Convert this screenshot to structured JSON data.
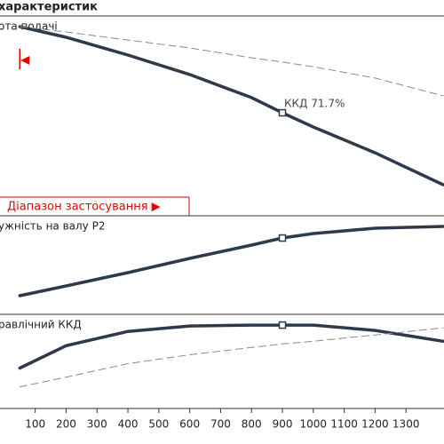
{
  "header": {
    "title": "характеристик"
  },
  "chart_data": [
    {
      "type": "line",
      "title": "ота подачі",
      "xlim": [
        -14,
        1423
      ],
      "ylim": [
        0,
        100
      ],
      "x": [
        50,
        200,
        400,
        600,
        800,
        900,
        1000,
        1200,
        1420
      ],
      "marker_index": 5,
      "range_start": 50,
      "annotations": [
        "ККД  71.7%",
        "Діапазон застосування ▶"
      ],
      "series": [
        {
          "name": null,
          "style": "solid",
          "color": "#2e3a4a",
          "values": [
            94.6,
            89.2,
            80.2,
            70.3,
            58.6,
            50.9,
            43.7,
            30.6,
            14.4
          ]
        },
        {
          "name": null,
          "style": "dashed",
          "color": "#8a8a8a",
          "values": [
            94.6,
            91.9,
            87.8,
            83.8,
            78.8,
            76.6,
            74.3,
            68.5,
            59.5
          ]
        }
      ]
    },
    {
      "type": "line",
      "title": "ужність на валу P2",
      "xlim": [
        -14,
        1423
      ],
      "ylim": [
        0,
        100
      ],
      "x": [
        50,
        200,
        400,
        600,
        800,
        900,
        1000,
        1200,
        1420
      ],
      "marker_index": 5,
      "series": [
        {
          "name": null,
          "style": "solid",
          "color": "#2e3a4a",
          "values": [
            15.9,
            26.2,
            40.2,
            55.1,
            69.2,
            76.6,
            81.3,
            86.9,
            88.8
          ]
        }
      ]
    },
    {
      "type": "line",
      "title": "равлічний ККД",
      "xlim": [
        -14,
        1423
      ],
      "ylim": [
        0,
        100
      ],
      "x": [
        50,
        200,
        400,
        600,
        800,
        900,
        1000,
        1200,
        1420
      ],
      "marker_index": 5,
      "xticks": [
        100,
        200,
        300,
        400,
        500,
        600,
        700,
        800,
        900,
        1000,
        1100,
        1200,
        1300
      ],
      "series": [
        {
          "name": null,
          "style": "solid",
          "color": "#2e3a4a",
          "values": [
            42.9,
            66.7,
            81.9,
            87.6,
            88.6,
            88.6,
            88.6,
            82.9,
            71.4
          ]
        },
        {
          "name": null,
          "style": "dashed",
          "color": "#8a8a8a",
          "values": [
            22.9,
            33.3,
            47.6,
            57.1,
            64.8,
            68.6,
            71.4,
            78.1,
            85.7
          ]
        }
      ]
    }
  ]
}
